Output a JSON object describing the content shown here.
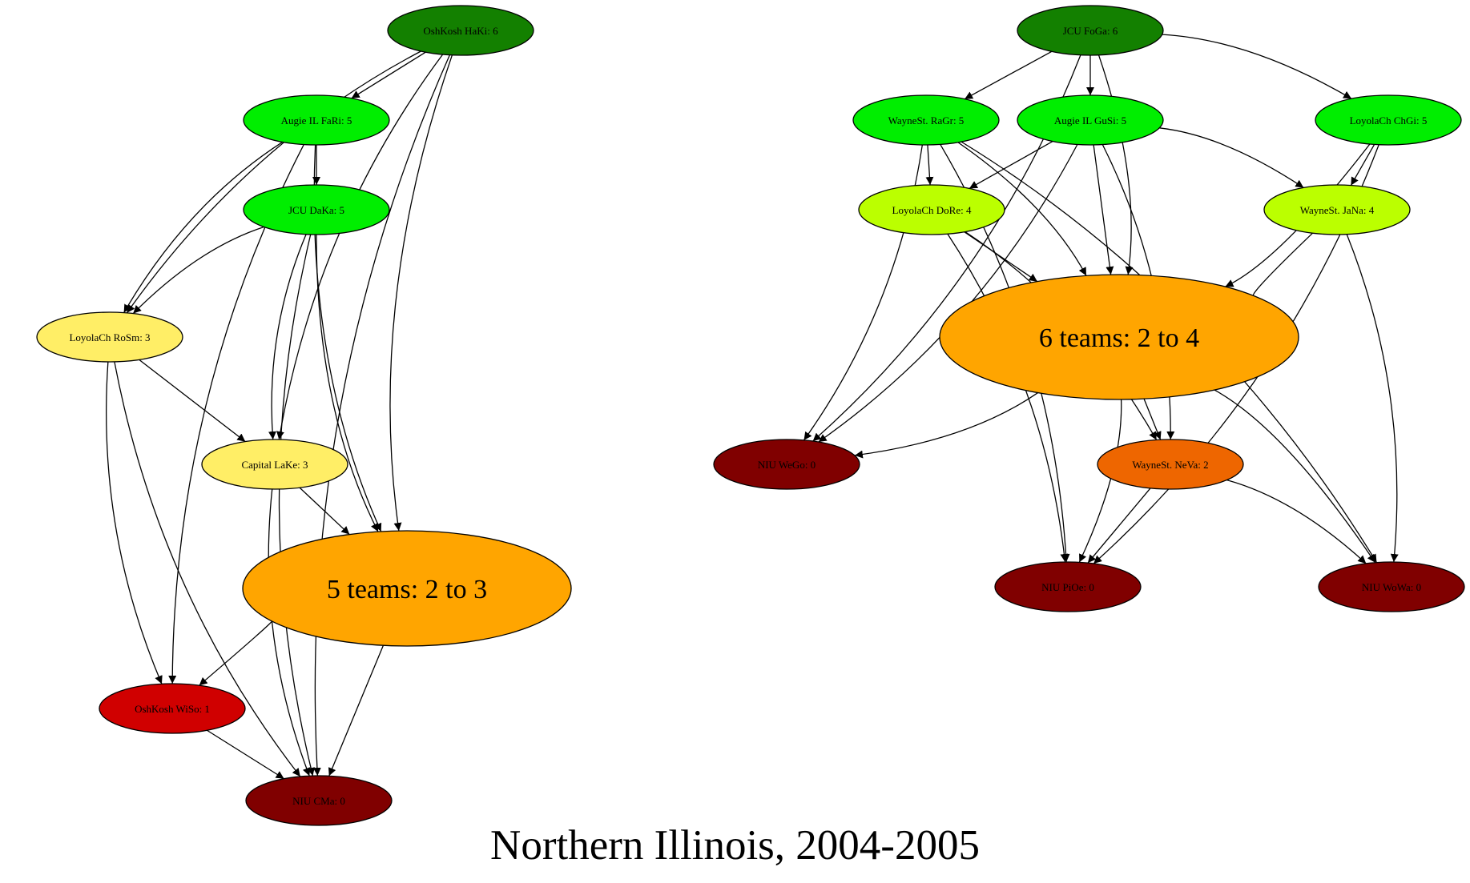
{
  "title": "Northern Illinois, 2004-2005",
  "colors": {
    "rank6": "#138000",
    "rank5": "#00ee00",
    "rank4": "#bbff00",
    "rank3": "#ffee66",
    "rank2": "#ee6600",
    "rank1": "#d00000",
    "rank0": "#800000",
    "summary": "#ffa500",
    "edge": "#000000"
  },
  "graphs": [
    {
      "id": "left",
      "nodes": [
        {
          "id": "l_haki",
          "label": "OshKosh HaKi: 6",
          "color": "rank6"
        },
        {
          "id": "l_fari",
          "label": "Augie IL FaRi: 5",
          "color": "rank5"
        },
        {
          "id": "l_daka",
          "label": "JCU DaKa: 5",
          "color": "rank5"
        },
        {
          "id": "l_rosm",
          "label": "LoyolaCh RoSm: 3",
          "color": "rank3"
        },
        {
          "id": "l_lake",
          "label": "Capital LaKe: 3",
          "color": "rank3"
        },
        {
          "id": "l_sum",
          "label": "5 teams: 2 to 3",
          "color": "summary",
          "summary": true
        },
        {
          "id": "l_wiso",
          "label": "OshKosh WiSo: 1",
          "color": "rank1"
        },
        {
          "id": "l_cma",
          "label": "NIU CMa: 0",
          "color": "rank0"
        }
      ],
      "edges": [
        [
          "l_haki",
          "l_fari"
        ],
        [
          "l_haki",
          "l_rosm"
        ],
        [
          "l_haki",
          "l_lake"
        ],
        [
          "l_haki",
          "l_sum"
        ],
        [
          "l_haki",
          "l_cma"
        ],
        [
          "l_fari",
          "l_daka"
        ],
        [
          "l_fari",
          "l_rosm"
        ],
        [
          "l_fari",
          "l_wiso"
        ],
        [
          "l_fari",
          "l_sum"
        ],
        [
          "l_daka",
          "l_rosm"
        ],
        [
          "l_daka",
          "l_lake"
        ],
        [
          "l_daka",
          "l_sum"
        ],
        [
          "l_daka",
          "l_cma"
        ],
        [
          "l_rosm",
          "l_lake"
        ],
        [
          "l_rosm",
          "l_wiso"
        ],
        [
          "l_rosm",
          "l_cma"
        ],
        [
          "l_lake",
          "l_sum"
        ],
        [
          "l_lake",
          "l_cma"
        ],
        [
          "l_sum",
          "l_wiso"
        ],
        [
          "l_sum",
          "l_cma"
        ],
        [
          "l_wiso",
          "l_cma"
        ]
      ]
    },
    {
      "id": "right",
      "nodes": [
        {
          "id": "r_foga",
          "label": "JCU FoGa: 6",
          "color": "rank6"
        },
        {
          "id": "r_ragr",
          "label": "WayneSt. RaGr: 5",
          "color": "rank5"
        },
        {
          "id": "r_gusi",
          "label": "Augie IL GuSi: 5",
          "color": "rank5"
        },
        {
          "id": "r_chgi",
          "label": "LoyolaCh ChGi: 5",
          "color": "rank5"
        },
        {
          "id": "r_dore",
          "label": "LoyolaCh DoRe: 4",
          "color": "rank4"
        },
        {
          "id": "r_jana",
          "label": "WayneSt. JaNa: 4",
          "color": "rank4"
        },
        {
          "id": "r_sum",
          "label": "6 teams: 2 to 4",
          "color": "summary",
          "summary": true
        },
        {
          "id": "r_wego",
          "label": "NIU WeGo: 0",
          "color": "rank0"
        },
        {
          "id": "r_neva",
          "label": "WayneSt. NeVa: 2",
          "color": "rank2"
        },
        {
          "id": "r_pioe",
          "label": "NIU PiOe: 0",
          "color": "rank0"
        },
        {
          "id": "r_wowa",
          "label": "NIU WoWa: 0",
          "color": "rank0"
        }
      ],
      "edges": [
        [
          "r_foga",
          "r_ragr"
        ],
        [
          "r_foga",
          "r_gusi"
        ],
        [
          "r_foga",
          "r_chgi"
        ],
        [
          "r_foga",
          "r_sum"
        ],
        [
          "r_foga",
          "r_wego"
        ],
        [
          "r_ragr",
          "r_dore"
        ],
        [
          "r_ragr",
          "r_sum"
        ],
        [
          "r_ragr",
          "r_wego"
        ],
        [
          "r_ragr",
          "r_pioe"
        ],
        [
          "r_ragr",
          "r_wowa"
        ],
        [
          "r_gusi",
          "r_dore"
        ],
        [
          "r_gusi",
          "r_jana"
        ],
        [
          "r_gusi",
          "r_sum"
        ],
        [
          "r_gusi",
          "r_wego"
        ],
        [
          "r_gusi",
          "r_neva"
        ],
        [
          "r_chgi",
          "r_jana"
        ],
        [
          "r_chgi",
          "r_sum"
        ],
        [
          "r_chgi",
          "r_pioe"
        ],
        [
          "r_dore",
          "r_sum"
        ],
        [
          "r_dore",
          "r_neva"
        ],
        [
          "r_dore",
          "r_pioe"
        ],
        [
          "r_jana",
          "r_sum"
        ],
        [
          "r_jana",
          "r_wowa"
        ],
        [
          "r_sum",
          "r_wego"
        ],
        [
          "r_sum",
          "r_neva"
        ],
        [
          "r_sum",
          "r_pioe"
        ],
        [
          "r_sum",
          "r_wowa"
        ],
        [
          "r_neva",
          "r_pioe"
        ],
        [
          "r_neva",
          "r_wowa"
        ]
      ]
    }
  ]
}
